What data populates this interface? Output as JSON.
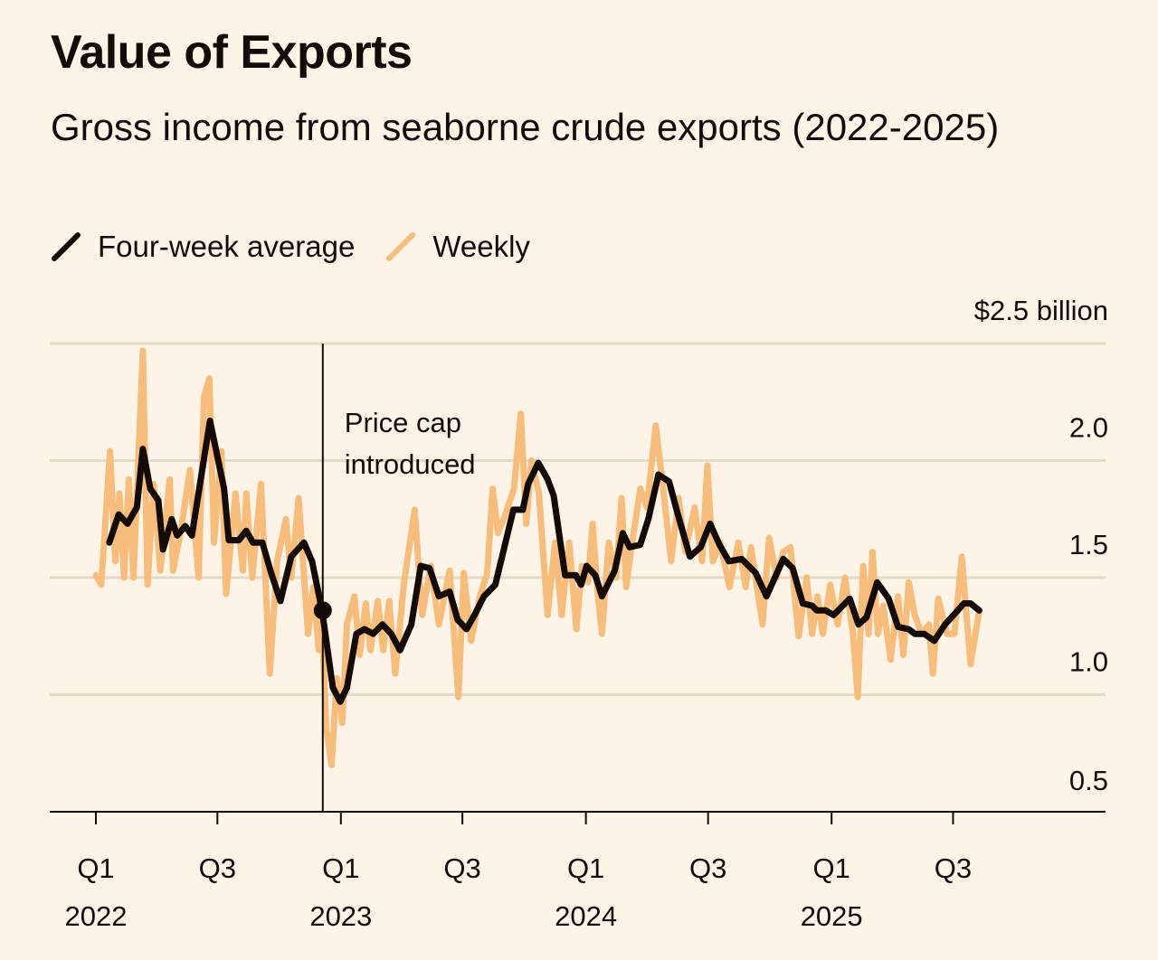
{
  "title": "Value of Exports",
  "subtitle": "Gross income from seaborne crude exports (2022-2025)",
  "legend": [
    {
      "label": "Four-week average",
      "color": "#140a08"
    },
    {
      "label": "Weekly",
      "color": "#f7bd7c"
    }
  ],
  "chart_data": {
    "type": "line",
    "title": "Value of Exports",
    "subtitle": "Gross income from seaborne crude exports (2022-2025)",
    "y_unit_label": "$2.5 billion",
    "ylim": [
      0.5,
      2.5
    ],
    "y_ticks": [
      {
        "value": 2.5,
        "label": "$2.5 billion"
      },
      {
        "value": 2.0,
        "label": "2.0"
      },
      {
        "value": 1.5,
        "label": "1.5"
      },
      {
        "value": 1.0,
        "label": "1.0"
      },
      {
        "value": 0.5,
        "label": "0.5"
      }
    ],
    "x_ticks": [
      {
        "date": "2022-01-01",
        "quarter": "Q1",
        "year": "2022"
      },
      {
        "date": "2022-07-01",
        "quarter": "Q3",
        "year": ""
      },
      {
        "date": "2023-01-01",
        "quarter": "Q1",
        "year": "2023"
      },
      {
        "date": "2023-07-01",
        "quarter": "Q3",
        "year": ""
      },
      {
        "date": "2024-01-01",
        "quarter": "Q1",
        "year": "2024"
      },
      {
        "date": "2024-07-01",
        "quarter": "Q3",
        "year": ""
      },
      {
        "date": "2025-01-01",
        "quarter": "Q1",
        "year": "2025"
      },
      {
        "date": "2025-07-01",
        "quarter": "Q3",
        "year": ""
      }
    ],
    "grid": "horizontal",
    "legend_placement": "top-left",
    "annotation": {
      "date": "2022-12-05",
      "value": 1.36,
      "text": [
        "Price cap",
        "introduced"
      ]
    },
    "series": [
      {
        "name": "Weekly",
        "color": "#f7bd7c",
        "points": [
          [
            "2022-01-01",
            1.51
          ],
          [
            "2022-01-09",
            1.47
          ],
          [
            "2022-01-22",
            2.04
          ],
          [
            "2022-01-30",
            1.57
          ],
          [
            "2022-02-05",
            1.86
          ],
          [
            "2022-02-12",
            1.5
          ],
          [
            "2022-02-19",
            1.92
          ],
          [
            "2022-02-26",
            1.5
          ],
          [
            "2022-03-04",
            1.92
          ],
          [
            "2022-03-12",
            2.47
          ],
          [
            "2022-03-19",
            1.47
          ],
          [
            "2022-03-28",
            1.9
          ],
          [
            "2022-04-07",
            1.53
          ],
          [
            "2022-04-21",
            1.92
          ],
          [
            "2022-04-26",
            1.53
          ],
          [
            "2022-05-07",
            1.69
          ],
          [
            "2022-05-21",
            1.96
          ],
          [
            "2022-06-03",
            1.5
          ],
          [
            "2022-06-11",
            2.27
          ],
          [
            "2022-06-19",
            2.35
          ],
          [
            "2022-06-26",
            1.65
          ],
          [
            "2022-07-07",
            2.04
          ],
          [
            "2022-07-14",
            1.43
          ],
          [
            "2022-07-28",
            1.86
          ],
          [
            "2022-08-08",
            1.53
          ],
          [
            "2022-08-13",
            1.86
          ],
          [
            "2022-08-22",
            1.5
          ],
          [
            "2022-09-04",
            1.9
          ],
          [
            "2022-09-17",
            1.09
          ],
          [
            "2022-09-28",
            1.57
          ],
          [
            "2022-10-11",
            1.75
          ],
          [
            "2022-10-19",
            1.5
          ],
          [
            "2022-10-30",
            1.84
          ],
          [
            "2022-11-13",
            1.26
          ],
          [
            "2022-11-21",
            1.46
          ],
          [
            "2022-11-29",
            1.19
          ],
          [
            "2022-12-04",
            1.32
          ],
          [
            "2022-12-10",
            0.86
          ],
          [
            "2022-12-18",
            0.7
          ],
          [
            "2022-12-26",
            1.07
          ],
          [
            "2023-01-03",
            0.88
          ],
          [
            "2023-01-10",
            1.3
          ],
          [
            "2023-01-21",
            1.42
          ],
          [
            "2023-01-29",
            1.17
          ],
          [
            "2023-02-07",
            1.39
          ],
          [
            "2023-02-14",
            1.19
          ],
          [
            "2023-02-25",
            1.4
          ],
          [
            "2023-03-05",
            1.19
          ],
          [
            "2023-03-14",
            1.4
          ],
          [
            "2023-03-23",
            1.09
          ],
          [
            "2023-04-05",
            1.48
          ],
          [
            "2023-04-21",
            1.79
          ],
          [
            "2023-05-02",
            1.34
          ],
          [
            "2023-05-15",
            1.55
          ],
          [
            "2023-05-27",
            1.3
          ],
          [
            "2023-06-12",
            1.53
          ],
          [
            "2023-06-25",
            0.99
          ],
          [
            "2023-07-03",
            1.52
          ],
          [
            "2023-07-14",
            1.23
          ],
          [
            "2023-07-27",
            1.42
          ],
          [
            "2023-08-07",
            1.52
          ],
          [
            "2023-08-15",
            1.88
          ],
          [
            "2023-08-23",
            1.69
          ],
          [
            "2023-09-03",
            1.77
          ],
          [
            "2023-09-16",
            1.88
          ],
          [
            "2023-09-26",
            2.2
          ],
          [
            "2023-10-04",
            1.73
          ],
          [
            "2023-10-12",
            2.0
          ],
          [
            "2023-10-23",
            1.86
          ],
          [
            "2023-11-05",
            1.34
          ],
          [
            "2023-11-16",
            1.65
          ],
          [
            "2023-11-26",
            1.34
          ],
          [
            "2023-12-07",
            1.65
          ],
          [
            "2023-12-18",
            1.28
          ],
          [
            "2023-12-26",
            1.55
          ],
          [
            "2024-01-04",
            1.48
          ],
          [
            "2024-01-11",
            1.73
          ],
          [
            "2024-01-19",
            1.42
          ],
          [
            "2024-01-25",
            1.26
          ],
          [
            "2024-02-04",
            1.65
          ],
          [
            "2024-02-15",
            1.5
          ],
          [
            "2024-02-23",
            1.84
          ],
          [
            "2024-03-01",
            1.46
          ],
          [
            "2024-03-08",
            1.61
          ],
          [
            "2024-03-22",
            1.88
          ],
          [
            "2024-04-01",
            1.8
          ],
          [
            "2024-04-14",
            2.15
          ],
          [
            "2024-04-25",
            1.88
          ],
          [
            "2024-05-07",
            1.57
          ],
          [
            "2024-05-18",
            1.84
          ],
          [
            "2024-05-28",
            1.61
          ],
          [
            "2024-06-11",
            1.8
          ],
          [
            "2024-06-22",
            1.57
          ],
          [
            "2024-06-30",
            1.98
          ],
          [
            "2024-07-08",
            1.57
          ],
          [
            "2024-07-19",
            1.65
          ],
          [
            "2024-08-02",
            1.46
          ],
          [
            "2024-08-15",
            1.65
          ],
          [
            "2024-08-26",
            1.46
          ],
          [
            "2024-09-03",
            1.63
          ],
          [
            "2024-09-20",
            1.3
          ],
          [
            "2024-09-30",
            1.67
          ],
          [
            "2024-10-11",
            1.5
          ],
          [
            "2024-10-21",
            1.61
          ],
          [
            "2024-11-01",
            1.63
          ],
          [
            "2024-11-07",
            1.42
          ],
          [
            "2024-11-13",
            1.25
          ],
          [
            "2024-11-25",
            1.5
          ],
          [
            "2024-12-03",
            1.26
          ],
          [
            "2024-12-11",
            1.42
          ],
          [
            "2024-12-19",
            1.26
          ],
          [
            "2024-12-30",
            1.47
          ],
          [
            "2025-01-10",
            1.3
          ],
          [
            "2025-01-21",
            1.5
          ],
          [
            "2025-02-02",
            1.26
          ],
          [
            "2025-02-09",
            0.99
          ],
          [
            "2025-02-17",
            1.55
          ],
          [
            "2025-02-25",
            1.26
          ],
          [
            "2025-03-03",
            1.61
          ],
          [
            "2025-03-11",
            1.26
          ],
          [
            "2025-03-19",
            1.38
          ],
          [
            "2025-03-30",
            1.15
          ],
          [
            "2025-04-10",
            1.42
          ],
          [
            "2025-04-18",
            1.17
          ],
          [
            "2025-04-26",
            1.48
          ],
          [
            "2025-05-05",
            1.34
          ],
          [
            "2025-05-15",
            1.26
          ],
          [
            "2025-05-26",
            1.3
          ],
          [
            "2025-06-01",
            1.09
          ],
          [
            "2025-06-09",
            1.41
          ],
          [
            "2025-06-22",
            1.26
          ],
          [
            "2025-07-03",
            1.26
          ],
          [
            "2025-07-14",
            1.59
          ],
          [
            "2025-07-27",
            1.13
          ],
          [
            "2025-08-09",
            1.36
          ]
        ]
      },
      {
        "name": "Four-week average",
        "color": "#140a08",
        "points": [
          [
            "2022-01-21",
            1.65
          ],
          [
            "2022-02-04",
            1.77
          ],
          [
            "2022-02-17",
            1.73
          ],
          [
            "2022-03-03",
            1.8
          ],
          [
            "2022-03-12",
            2.05
          ],
          [
            "2022-03-23",
            1.88
          ],
          [
            "2022-04-04",
            1.83
          ],
          [
            "2022-04-11",
            1.62
          ],
          [
            "2022-04-24",
            1.75
          ],
          [
            "2022-05-02",
            1.68
          ],
          [
            "2022-05-14",
            1.72
          ],
          [
            "2022-05-24",
            1.68
          ],
          [
            "2022-06-20",
            2.17
          ],
          [
            "2022-07-11",
            1.88
          ],
          [
            "2022-07-18",
            1.66
          ],
          [
            "2022-08-02",
            1.66
          ],
          [
            "2022-08-13",
            1.7
          ],
          [
            "2022-08-23",
            1.65
          ],
          [
            "2022-09-06",
            1.65
          ],
          [
            "2022-09-19",
            1.52
          ],
          [
            "2022-10-03",
            1.4
          ],
          [
            "2022-10-19",
            1.59
          ],
          [
            "2022-11-07",
            1.65
          ],
          [
            "2022-11-19",
            1.57
          ],
          [
            "2022-12-04",
            1.36
          ],
          [
            "2022-12-20",
            1.03
          ],
          [
            "2022-12-31",
            0.97
          ],
          [
            "2023-01-10",
            1.03
          ],
          [
            "2023-01-24",
            1.26
          ],
          [
            "2023-02-05",
            1.28
          ],
          [
            "2023-02-18",
            1.26
          ],
          [
            "2023-03-04",
            1.3
          ],
          [
            "2023-03-17",
            1.26
          ],
          [
            "2023-03-30",
            1.19
          ],
          [
            "2023-04-16",
            1.3
          ],
          [
            "2023-04-30",
            1.55
          ],
          [
            "2023-05-13",
            1.54
          ],
          [
            "2023-05-27",
            1.42
          ],
          [
            "2023-06-12",
            1.44
          ],
          [
            "2023-06-24",
            1.32
          ],
          [
            "2023-07-07",
            1.28
          ],
          [
            "2023-07-19",
            1.34
          ],
          [
            "2023-08-02",
            1.42
          ],
          [
            "2023-08-19",
            1.47
          ],
          [
            "2023-09-15",
            1.79
          ],
          [
            "2023-09-29",
            1.79
          ],
          [
            "2023-10-07",
            1.9
          ],
          [
            "2023-10-22",
            1.99
          ],
          [
            "2023-11-05",
            1.92
          ],
          [
            "2023-11-14",
            1.85
          ],
          [
            "2023-12-01",
            1.51
          ],
          [
            "2023-12-17",
            1.51
          ],
          [
            "2023-12-25",
            1.47
          ],
          [
            "2024-01-02",
            1.55
          ],
          [
            "2024-01-15",
            1.51
          ],
          [
            "2024-01-25",
            1.42
          ],
          [
            "2024-02-13",
            1.53
          ],
          [
            "2024-02-25",
            1.69
          ],
          [
            "2024-03-06",
            1.63
          ],
          [
            "2024-03-22",
            1.64
          ],
          [
            "2024-04-03",
            1.75
          ],
          [
            "2024-04-18",
            1.94
          ],
          [
            "2024-05-04",
            1.91
          ],
          [
            "2024-05-17",
            1.77
          ],
          [
            "2024-06-04",
            1.59
          ],
          [
            "2024-06-20",
            1.63
          ],
          [
            "2024-07-04",
            1.73
          ],
          [
            "2024-07-18",
            1.64
          ],
          [
            "2024-08-01",
            1.57
          ],
          [
            "2024-08-20",
            1.58
          ],
          [
            "2024-09-10",
            1.52
          ],
          [
            "2024-09-26",
            1.42
          ],
          [
            "2024-10-21",
            1.58
          ],
          [
            "2024-11-04",
            1.54
          ],
          [
            "2024-11-19",
            1.39
          ],
          [
            "2024-12-03",
            1.38
          ],
          [
            "2024-12-10",
            1.36
          ],
          [
            "2024-12-23",
            1.36
          ],
          [
            "2025-01-04",
            1.34
          ],
          [
            "2025-01-28",
            1.41
          ],
          [
            "2025-02-10",
            1.3
          ],
          [
            "2025-02-22",
            1.33
          ],
          [
            "2025-03-10",
            1.48
          ],
          [
            "2025-03-27",
            1.41
          ],
          [
            "2025-04-10",
            1.29
          ],
          [
            "2025-04-26",
            1.28
          ],
          [
            "2025-05-05",
            1.26
          ],
          [
            "2025-05-19",
            1.26
          ],
          [
            "2025-06-03",
            1.23
          ],
          [
            "2025-06-19",
            1.3
          ],
          [
            "2025-07-05",
            1.35
          ],
          [
            "2025-07-17",
            1.39
          ],
          [
            "2025-07-27",
            1.39
          ],
          [
            "2025-08-09",
            1.36
          ]
        ]
      }
    ]
  }
}
